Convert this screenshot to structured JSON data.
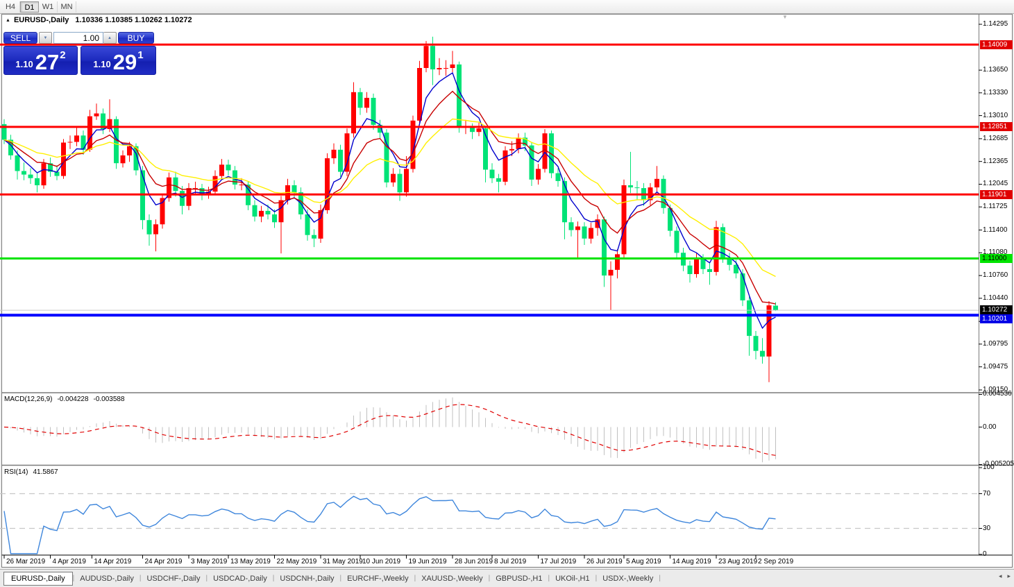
{
  "toolbar": {
    "timeframes": [
      "H4",
      "D1",
      "W1",
      "MN"
    ],
    "active_timeframe": "D1"
  },
  "chart": {
    "title": "EURUSD-,Daily",
    "ohlc_display": "1.10336 1.10385 1.10262 1.10272",
    "collapse_icon": "▲",
    "shift_marker_icon": "▼",
    "one_click": {
      "sell_label": "SELL",
      "buy_label": "BUY",
      "volume": "1.00",
      "sell_price": {
        "base": "1.10",
        "big": "27",
        "sup": "2"
      },
      "buy_price": {
        "base": "1.10",
        "big": "29",
        "sup": "1"
      }
    }
  },
  "chart_data": {
    "type": "candlestick",
    "symbol": "EURUSD-",
    "timeframe": "Daily",
    "start_date": "26 Mar 2019",
    "candles_ohlc": [
      [
        1.1289,
        1.1296,
        1.1261,
        1.1267
      ],
      [
        1.1267,
        1.1274,
        1.1239,
        1.1245
      ],
      [
        1.1245,
        1.1252,
        1.1211,
        1.1223
      ],
      [
        1.1223,
        1.1235,
        1.121,
        1.1218
      ],
      [
        1.1218,
        1.1227,
        1.1205,
        1.1213
      ],
      [
        1.1213,
        1.1221,
        1.1193,
        1.1203
      ],
      [
        1.1203,
        1.124,
        1.1198,
        1.1234
      ],
      [
        1.1234,
        1.1242,
        1.1215,
        1.1222
      ],
      [
        1.1222,
        1.1231,
        1.121,
        1.1216
      ],
      [
        1.1216,
        1.1268,
        1.1212,
        1.1263
      ],
      [
        1.1263,
        1.1273,
        1.1254,
        1.1264
      ],
      [
        1.1264,
        1.1285,
        1.1258,
        1.1273
      ],
      [
        1.1273,
        1.128,
        1.1246,
        1.1253
      ],
      [
        1.1253,
        1.1309,
        1.125,
        1.13
      ],
      [
        1.13,
        1.1318,
        1.1295,
        1.1304
      ],
      [
        1.1304,
        1.1311,
        1.1275,
        1.1282
      ],
      [
        1.1282,
        1.1324,
        1.1278,
        1.1296
      ],
      [
        1.1296,
        1.13,
        1.1226,
        1.1234
      ],
      [
        1.1234,
        1.1252,
        1.1228,
        1.1245
      ],
      [
        1.1245,
        1.1264,
        1.1236,
        1.1258
      ],
      [
        1.1258,
        1.1262,
        1.1217,
        1.1224
      ],
      [
        1.1224,
        1.123,
        1.1141,
        1.1154
      ],
      [
        1.1154,
        1.1162,
        1.1118,
        1.1134
      ],
      [
        1.1134,
        1.1155,
        1.111,
        1.1148
      ],
      [
        1.1148,
        1.1191,
        1.1142,
        1.1185
      ],
      [
        1.1185,
        1.1221,
        1.118,
        1.1214
      ],
      [
        1.1214,
        1.1222,
        1.1187,
        1.1195
      ],
      [
        1.1195,
        1.1202,
        1.1162,
        1.1174
      ],
      [
        1.1174,
        1.1206,
        1.1168,
        1.1199
      ],
      [
        1.1199,
        1.1208,
        1.119,
        1.1199
      ],
      [
        1.1199,
        1.1205,
        1.1182,
        1.119
      ],
      [
        1.119,
        1.1201,
        1.1184,
        1.1194
      ],
      [
        1.1194,
        1.1224,
        1.1189,
        1.1216
      ],
      [
        1.1216,
        1.124,
        1.1211,
        1.1232
      ],
      [
        1.1232,
        1.1239,
        1.1217,
        1.1224
      ],
      [
        1.1224,
        1.123,
        1.1197,
        1.1204
      ],
      [
        1.1204,
        1.1213,
        1.1196,
        1.1204
      ],
      [
        1.1204,
        1.1209,
        1.1168,
        1.1175
      ],
      [
        1.1175,
        1.1182,
        1.1152,
        1.1159
      ],
      [
        1.1159,
        1.1174,
        1.1151,
        1.1167
      ],
      [
        1.1167,
        1.1176,
        1.1155,
        1.1162
      ],
      [
        1.1162,
        1.1169,
        1.1143,
        1.1151
      ],
      [
        1.1151,
        1.1188,
        1.1107,
        1.1182
      ],
      [
        1.1182,
        1.1212,
        1.1176,
        1.1203
      ],
      [
        1.1203,
        1.121,
        1.1186,
        1.1193
      ],
      [
        1.1193,
        1.12,
        1.1155,
        1.1162
      ],
      [
        1.1162,
        1.1169,
        1.1125,
        1.1133
      ],
      [
        1.1133,
        1.1141,
        1.1116,
        1.1128
      ],
      [
        1.1128,
        1.1176,
        1.1122,
        1.1168
      ],
      [
        1.1168,
        1.1248,
        1.1163,
        1.1241
      ],
      [
        1.1241,
        1.1262,
        1.1233,
        1.1253
      ],
      [
        1.1253,
        1.126,
        1.1215,
        1.1222
      ],
      [
        1.1222,
        1.1283,
        1.1216,
        1.1276
      ],
      [
        1.1276,
        1.1348,
        1.127,
        1.1334
      ],
      [
        1.1334,
        1.134,
        1.1302,
        1.1312
      ],
      [
        1.1312,
        1.1334,
        1.1305,
        1.1326
      ],
      [
        1.1326,
        1.1332,
        1.1281,
        1.1288
      ],
      [
        1.1288,
        1.1295,
        1.1268,
        1.1277
      ],
      [
        1.1277,
        1.1282,
        1.12,
        1.1207
      ],
      [
        1.1207,
        1.1227,
        1.1201,
        1.1219
      ],
      [
        1.1219,
        1.1226,
        1.1181,
        1.1193
      ],
      [
        1.1193,
        1.1244,
        1.1187,
        1.1226
      ],
      [
        1.1226,
        1.1301,
        1.1221,
        1.1294
      ],
      [
        1.1294,
        1.1378,
        1.1289,
        1.1368
      ],
      [
        1.1368,
        1.1406,
        1.1362,
        1.1399
      ],
      [
        1.1399,
        1.1412,
        1.1344,
        1.1366
      ],
      [
        1.1366,
        1.1382,
        1.1358,
        1.1368
      ],
      [
        1.1368,
        1.1379,
        1.1357,
        1.1368
      ],
      [
        1.1368,
        1.1392,
        1.1362,
        1.1373
      ],
      [
        1.1373,
        1.1377,
        1.1277,
        1.1285
      ],
      [
        1.1285,
        1.1295,
        1.1275,
        1.1285
      ],
      [
        1.1285,
        1.129,
        1.1268,
        1.1278
      ],
      [
        1.1278,
        1.1291,
        1.1272,
        1.1283
      ],
      [
        1.1283,
        1.1286,
        1.1207,
        1.1225
      ],
      [
        1.1225,
        1.1234,
        1.1206,
        1.1213
      ],
      [
        1.1213,
        1.1219,
        1.1193,
        1.1208
      ],
      [
        1.1208,
        1.1258,
        1.1203,
        1.1252
      ],
      [
        1.1252,
        1.1265,
        1.1244,
        1.1254
      ],
      [
        1.1254,
        1.1276,
        1.1248,
        1.127
      ],
      [
        1.127,
        1.1277,
        1.1251,
        1.1259
      ],
      [
        1.1259,
        1.1264,
        1.1202,
        1.1211
      ],
      [
        1.1211,
        1.1233,
        1.1204,
        1.1226
      ],
      [
        1.1226,
        1.1282,
        1.1221,
        1.1276
      ],
      [
        1.1276,
        1.128,
        1.1213,
        1.122
      ],
      [
        1.122,
        1.1227,
        1.1201,
        1.1209
      ],
      [
        1.1209,
        1.1214,
        1.1127,
        1.1151
      ],
      [
        1.1151,
        1.1158,
        1.1131,
        1.114
      ],
      [
        1.114,
        1.1152,
        1.1101,
        1.1145
      ],
      [
        1.1145,
        1.1151,
        1.1119,
        1.1128
      ],
      [
        1.1128,
        1.115,
        1.1121,
        1.1143
      ],
      [
        1.1143,
        1.1162,
        1.1132,
        1.1155
      ],
      [
        1.1155,
        1.1159,
        1.106,
        1.1076
      ],
      [
        1.1076,
        1.1096,
        1.1027,
        1.1084
      ],
      [
        1.1084,
        1.1113,
        1.1072,
        1.1106
      ],
      [
        1.1106,
        1.1211,
        1.1101,
        1.1203
      ],
      [
        1.1203,
        1.125,
        1.1192,
        1.12
      ],
      [
        1.12,
        1.1209,
        1.1183,
        1.1199
      ],
      [
        1.1199,
        1.1206,
        1.1174,
        1.1182
      ],
      [
        1.1182,
        1.1206,
        1.1175,
        1.12
      ],
      [
        1.12,
        1.123,
        1.1193,
        1.1212
      ],
      [
        1.1212,
        1.1217,
        1.1163,
        1.1171
      ],
      [
        1.1171,
        1.1176,
        1.1131,
        1.1139
      ],
      [
        1.1139,
        1.1145,
        1.11,
        1.1108
      ],
      [
        1.1108,
        1.1115,
        1.1082,
        1.109
      ],
      [
        1.109,
        1.1097,
        1.1066,
        1.1078
      ],
      [
        1.1078,
        1.1107,
        1.1073,
        1.1099
      ],
      [
        1.1099,
        1.1106,
        1.1078,
        1.1085
      ],
      [
        1.1085,
        1.1093,
        1.1063,
        1.1081
      ],
      [
        1.1081,
        1.1153,
        1.1076,
        1.1144
      ],
      [
        1.1144,
        1.1149,
        1.1094,
        1.1101
      ],
      [
        1.1101,
        1.1108,
        1.1083,
        1.1091
      ],
      [
        1.1091,
        1.1098,
        1.1072,
        1.1079
      ],
      [
        1.1079,
        1.1085,
        1.1033,
        1.1041
      ],
      [
        1.1041,
        1.1046,
        1.0963,
        1.0991
      ],
      [
        1.0991,
        1.0998,
        1.0958,
        1.097
      ],
      [
        1.097,
        1.0988,
        1.0952,
        1.0962
      ],
      [
        1.0962,
        1.104,
        1.0926,
        1.1034
      ],
      [
        1.10336,
        1.10385,
        1.10262,
        1.10272
      ]
    ],
    "date_labels": [
      {
        "label": "26 Mar 2019",
        "bar": 0
      },
      {
        "label": "4 Apr 2019",
        "bar": 7
      },
      {
        "label": "14 Apr 2019",
        "bar": 13.3
      },
      {
        "label": "24 Apr 2019",
        "bar": 21
      },
      {
        "label": "3 May 2019",
        "bar": 28
      },
      {
        "label": "13 May 2019",
        "bar": 34
      },
      {
        "label": "22 May 2019",
        "bar": 41
      },
      {
        "label": "31 May 2019",
        "bar": 48
      },
      {
        "label": "10 Jun 2019",
        "bar": 54
      },
      {
        "label": "19 Jun 2019",
        "bar": 61
      },
      {
        "label": "28 Jun 2019",
        "bar": 68
      },
      {
        "label": "8 Jul 2019",
        "bar": 74
      },
      {
        "label": "17 Jul 2019",
        "bar": 81
      },
      {
        "label": "26 Jul 2019",
        "bar": 88
      },
      {
        "label": "5 Aug 2019",
        "bar": 94
      },
      {
        "label": "14 Aug 2019",
        "bar": 101
      },
      {
        "label": "23 Aug 2019",
        "bar": 108
      },
      {
        "label": "2 Sep 2019",
        "bar": 114
      }
    ],
    "price_axis_labels": [
      1.14295,
      1.1365,
      1.1333,
      1.1301,
      1.12685,
      1.12365,
      1.12045,
      1.11725,
      1.114,
      1.1108,
      1.1076,
      1.1044,
      1.10115,
      1.09795,
      1.09475,
      1.0915
    ],
    "hlines": [
      {
        "price": 1.14009,
        "color": "#FF0000",
        "width": 3,
        "badge_bg": "#E00000",
        "badge_fg": "#FFFFFF",
        "badge_dy": 0
      },
      {
        "price": 1.12851,
        "color": "#FF0000",
        "width": 3,
        "badge_bg": "#E00000",
        "badge_fg": "#FFFFFF",
        "badge_dy": 0
      },
      {
        "price": 1.11901,
        "color": "#FF0000",
        "width": 3,
        "badge_bg": "#E00000",
        "badge_fg": "#FFFFFF",
        "badge_dy": 0
      },
      {
        "price": 1.11,
        "color": "#00E400",
        "width": 3,
        "badge_bg": "#00E400",
        "badge_fg": "#000000",
        "badge_dy": 0
      },
      {
        "price": 1.10201,
        "color": "#0000FF",
        "width": 4,
        "badge_bg": "#0000E6",
        "badge_fg": "#FFFFFF",
        "badge_dy": 5
      }
    ],
    "bid_line": {
      "price": 1.10272,
      "color": "#C8C8C8",
      "badge_bg": "#000000",
      "badge_fg": "#FFFFFF"
    },
    "moving_averages": [
      {
        "period": 5,
        "color": "#0000CD"
      },
      {
        "period": 10,
        "color": "#C80000"
      },
      {
        "period": 21,
        "color": "#FFF000"
      }
    ],
    "macd": {
      "label": "MACD(12,26,9)",
      "main_value": "-0.004228",
      "signal_value": "-0.003588",
      "fast": 12,
      "slow": 26,
      "signal": 9,
      "axis_labels": [
        "0.004536",
        "0.00",
        "-0.005205"
      ],
      "hist_color": "#C0C0C0",
      "signal_color": "#E00000"
    },
    "rsi": {
      "label": "RSI(14)",
      "value": "41.5867",
      "period": 14,
      "levels": [
        70,
        30
      ],
      "axis_labels": [
        "100",
        "70",
        "30",
        "0"
      ],
      "color": "#3E86DC",
      "level_color": "#C8C8C8"
    },
    "colors": {
      "bull": "#FF0000",
      "bear": "#00E377",
      "background": "#FFFFFF",
      "axis_text": "#000000"
    }
  },
  "tabs": {
    "items": [
      "EURUSD-,Daily",
      "AUDUSD-,Daily",
      "USDCHF-,Daily",
      "USDCAD-,Daily",
      "USDCNH-,Daily",
      "EURCHF-,Weekly",
      "XAUUSD-,Weekly",
      "GBPUSD-,H1",
      "UKOil-,H1",
      "USDX-,Weekly"
    ],
    "active": "EURUSD-,Daily",
    "scroll_left_icon": "◂",
    "scroll_right_icon": "▸"
  }
}
